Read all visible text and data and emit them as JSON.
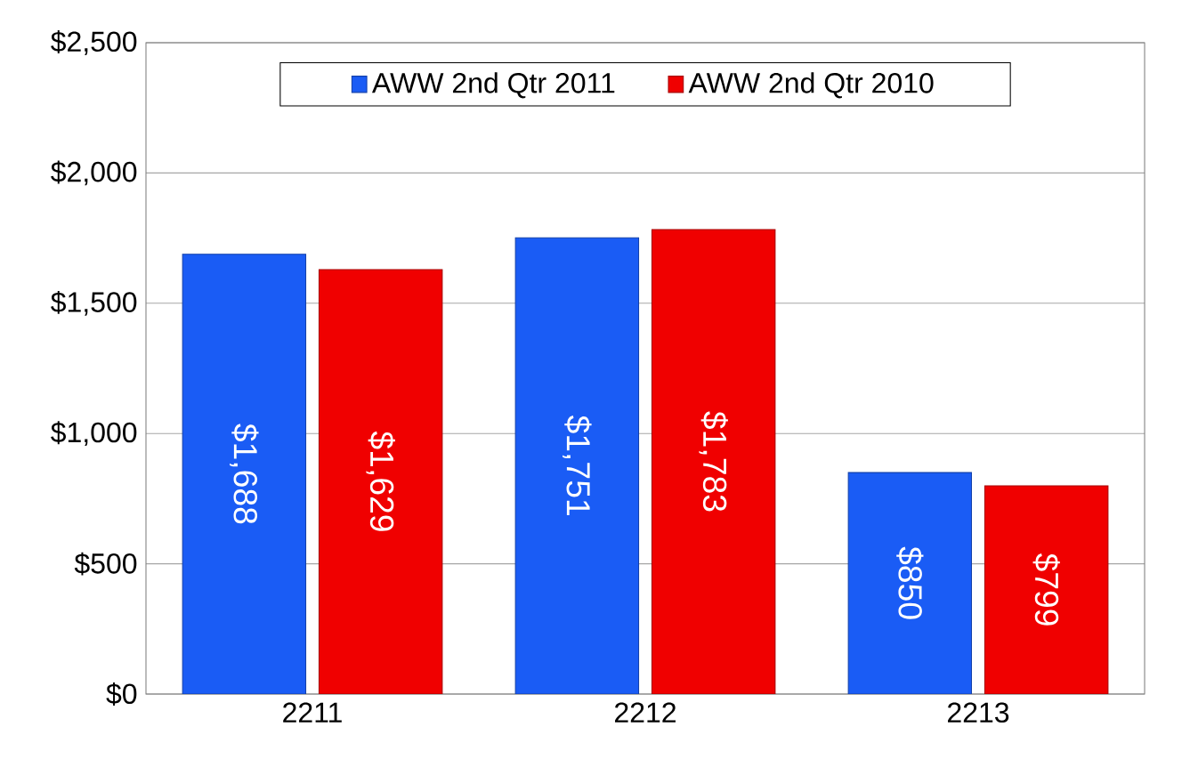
{
  "chart_data": {
    "type": "bar",
    "categories": [
      "2211",
      "2212",
      "2213"
    ],
    "series": [
      {
        "name": "AWW 2nd Qtr 2011",
        "color": "#1a5cf5",
        "values": [
          1688,
          1751,
          850
        ],
        "value_labels": [
          "$1,688",
          "$1,751",
          "$850"
        ]
      },
      {
        "name": "AWW 2nd Qtr 2010",
        "color": "#f00000",
        "values": [
          1629,
          1783,
          799
        ],
        "value_labels": [
          "$1,629",
          "$1,783",
          "$799"
        ]
      }
    ],
    "ylim": [
      0,
      2500
    ],
    "yticks": [
      {
        "value": 0,
        "label": "$0"
      },
      {
        "value": 500,
        "label": "$500"
      },
      {
        "value": 1000,
        "label": "$1,000"
      },
      {
        "value": 1500,
        "label": "$1,500"
      },
      {
        "value": 2000,
        "label": "$2,000"
      },
      {
        "value": 2500,
        "label": "$2,500"
      }
    ],
    "grid": "y",
    "legend": "top"
  }
}
